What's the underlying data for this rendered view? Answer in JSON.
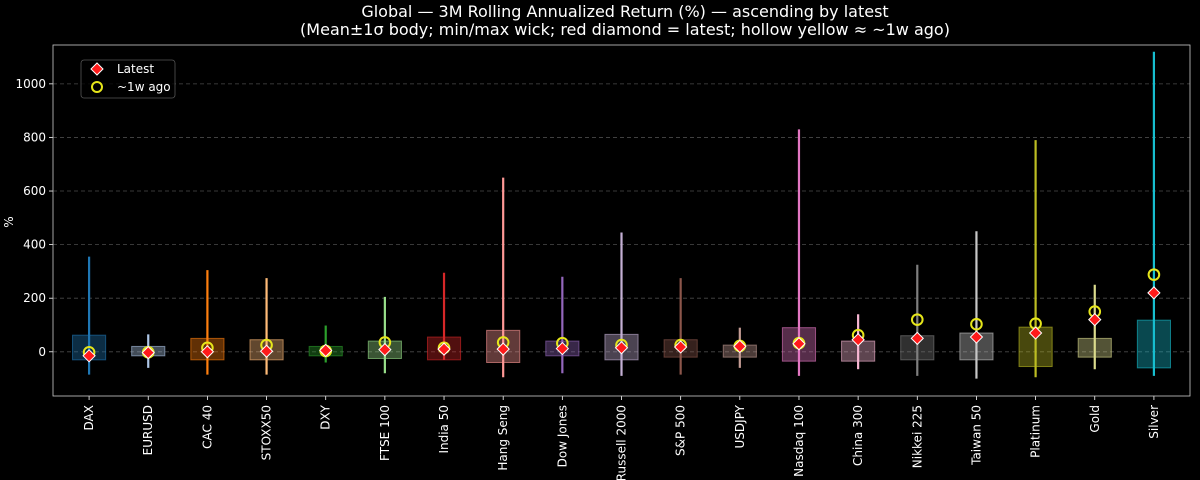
{
  "chart_data": {
    "type": "candlestick-range",
    "title": "Global — 3M Rolling Annualized Return (%) — ascending by latest",
    "subtitle": "(Mean±1σ body; min/max wick; red diamond = latest; hollow yellow ≈ ~1w ago)",
    "ylabel": "%",
    "ylim": [
      -165,
      1145
    ],
    "yticks": [
      0,
      200,
      400,
      600,
      800,
      1000
    ],
    "grid": true,
    "legend_position": "top-left",
    "legend": [
      {
        "key": "latest",
        "label": "Latest",
        "color": "#ff1a1a"
      },
      {
        "key": "week_ago",
        "label": "~1w ago",
        "color": "#e6e61a"
      }
    ],
    "series": [
      {
        "name": "DAX",
        "color": "#1f77b4",
        "min": -85,
        "max": 355,
        "body_low": -30,
        "body_high": 62,
        "latest": -15,
        "week_ago": -2
      },
      {
        "name": "EURUSD",
        "color": "#aec7e8",
        "min": -60,
        "max": 65,
        "body_low": -15,
        "body_high": 20,
        "latest": -3,
        "week_ago": -2
      },
      {
        "name": "CAC 40",
        "color": "#ff7f0e",
        "min": -85,
        "max": 305,
        "body_low": -30,
        "body_high": 50,
        "latest": 0,
        "week_ago": 15
      },
      {
        "name": "STOXX50",
        "color": "#ffbb78",
        "min": -85,
        "max": 275,
        "body_low": -30,
        "body_high": 45,
        "latest": 2,
        "week_ago": 25
      },
      {
        "name": "DXY",
        "color": "#2ca02c",
        "min": -40,
        "max": 98,
        "body_low": -15,
        "body_high": 20,
        "latest": 5,
        "week_ago": 3
      },
      {
        "name": "FTSE 100",
        "color": "#98df8a",
        "min": -80,
        "max": 205,
        "body_low": -25,
        "body_high": 40,
        "latest": 8,
        "week_ago": 35
      },
      {
        "name": "India 50",
        "color": "#d62728",
        "min": -30,
        "max": 295,
        "body_low": -30,
        "body_high": 55,
        "latest": 10,
        "week_ago": 15
      },
      {
        "name": "Hang Seng",
        "color": "#ff9896",
        "min": -95,
        "max": 650,
        "body_low": -40,
        "body_high": 80,
        "latest": 10,
        "week_ago": 35
      },
      {
        "name": "Dow Jones",
        "color": "#9467bd",
        "min": -80,
        "max": 280,
        "body_low": -15,
        "body_high": 40,
        "latest": 12,
        "week_ago": 32
      },
      {
        "name": "Russell 2000",
        "color": "#c5b0d5",
        "min": -90,
        "max": 445,
        "body_low": -30,
        "body_high": 65,
        "latest": 15,
        "week_ago": 25
      },
      {
        "name": "S&P 500",
        "color": "#8c564b",
        "min": -85,
        "max": 275,
        "body_low": -20,
        "body_high": 45,
        "latest": 18,
        "week_ago": 25
      },
      {
        "name": "USDJPY",
        "color": "#c49c94",
        "min": -60,
        "max": 90,
        "body_low": -20,
        "body_high": 25,
        "latest": 20,
        "week_ago": 22
      },
      {
        "name": "Nasdaq 100",
        "color": "#e377c2",
        "min": -90,
        "max": 830,
        "body_low": -35,
        "body_high": 90,
        "latest": 30,
        "week_ago": 32
      },
      {
        "name": "China 300",
        "color": "#f7b6d2",
        "min": -65,
        "max": 140,
        "body_low": -35,
        "body_high": 40,
        "latest": 45,
        "week_ago": 62
      },
      {
        "name": "Nikkei 225",
        "color": "#7f7f7f",
        "min": -90,
        "max": 325,
        "body_low": -30,
        "body_high": 60,
        "latest": 50,
        "week_ago": 120
      },
      {
        "name": "Taiwan 50",
        "color": "#c7c7c7",
        "min": -100,
        "max": 450,
        "body_low": -30,
        "body_high": 70,
        "latest": 55,
        "week_ago": 103
      },
      {
        "name": "Platinum",
        "color": "#bcbd22",
        "min": -95,
        "max": 790,
        "body_low": -55,
        "body_high": 92,
        "latest": 70,
        "week_ago": 105
      },
      {
        "name": "Gold",
        "color": "#dbdb8d",
        "min": -65,
        "max": 250,
        "body_low": -20,
        "body_high": 50,
        "latest": 120,
        "week_ago": 150
      },
      {
        "name": "Silver",
        "color": "#17becf",
        "min": -90,
        "max": 1120,
        "body_low": -60,
        "body_high": 118,
        "latest": 220,
        "week_ago": 288
      }
    ]
  }
}
